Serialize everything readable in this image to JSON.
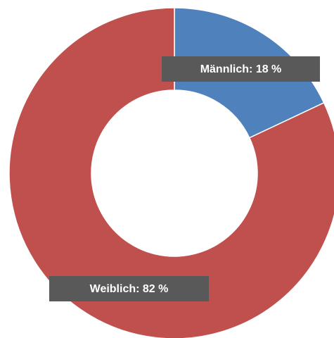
{
  "chart_data": {
    "type": "donut",
    "values": [
      18,
      82
    ],
    "value_labels": [
      "Männlich: 18 %",
      "Weiblich: 82 %"
    ],
    "colors": [
      "#4f81bd",
      "#c0504d"
    ]
  }
}
